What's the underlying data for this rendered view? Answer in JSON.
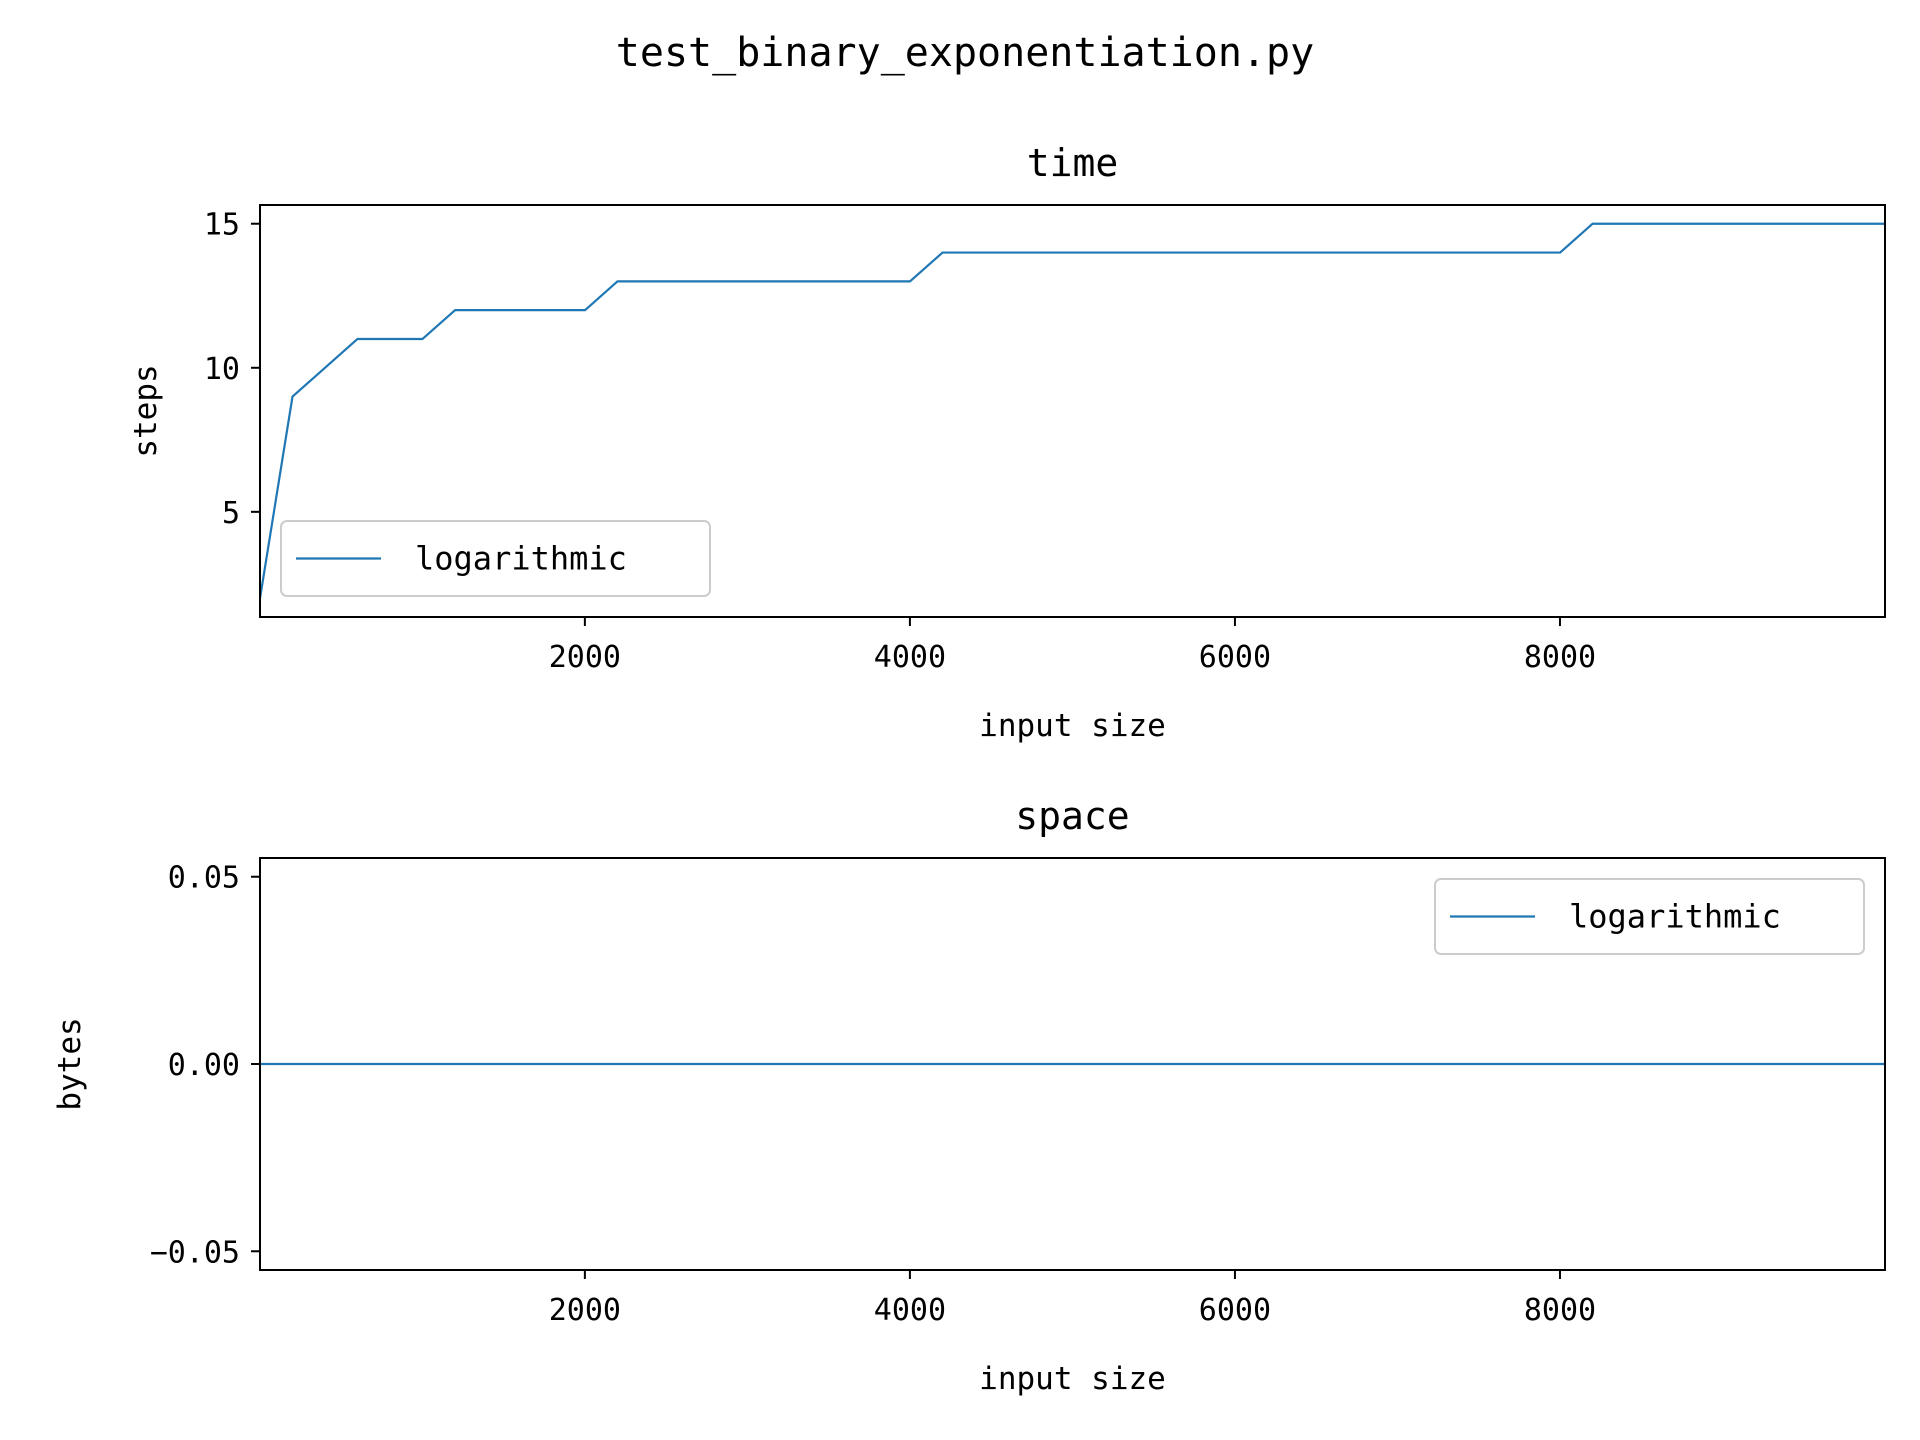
{
  "suptitle": "test_binary_exponentiation.py",
  "colors": {
    "line": "#1f77b4",
    "axes": "#000000",
    "legend_border": "#cccccc"
  },
  "chart_data": [
    {
      "type": "line",
      "title": "time",
      "xlabel": "input size",
      "ylabel": "steps",
      "xlim": [
        1,
        10000
      ],
      "ylim": [
        1.35,
        15.65
      ],
      "xticks": [
        2000,
        4000,
        6000,
        8000
      ],
      "xtick_labels": [
        "2000",
        "4000",
        "6000",
        "8000"
      ],
      "yticks": [
        5,
        10,
        15
      ],
      "ytick_labels": [
        "5",
        "10",
        "15"
      ],
      "legend": "lower-left",
      "grid": false,
      "series": [
        {
          "name": "logarithmic",
          "x": [
            1,
            201,
            601,
            1001,
            1201,
            2001,
            2201,
            4001,
            4201,
            8001,
            8201,
            10000
          ],
          "y": [
            2,
            9,
            11,
            11,
            12,
            12,
            13,
            13,
            14,
            14,
            15,
            15
          ]
        }
      ]
    },
    {
      "type": "line",
      "title": "space",
      "xlabel": "input size",
      "ylabel": "bytes",
      "xlim": [
        1,
        10000
      ],
      "ylim": [
        -0.055,
        0.055
      ],
      "xticks": [
        2000,
        4000,
        6000,
        8000
      ],
      "xtick_labels": [
        "2000",
        "4000",
        "6000",
        "8000"
      ],
      "yticks": [
        -0.05,
        0.0,
        0.05
      ],
      "ytick_labels": [
        "−0.05",
        "0.00",
        "0.05"
      ],
      "legend": "upper-right",
      "grid": false,
      "series": [
        {
          "name": "logarithmic",
          "x": [
            1,
            10000
          ],
          "y": [
            0,
            0
          ]
        }
      ]
    }
  ]
}
